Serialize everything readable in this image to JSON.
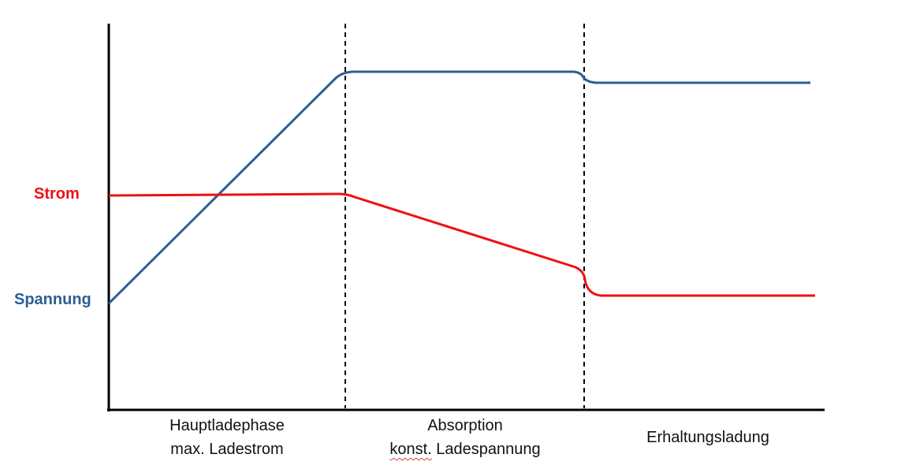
{
  "colors": {
    "strom": "#ee1111",
    "spannung": "#2b5f93",
    "axis": "#000000"
  },
  "series": {
    "strom": {
      "label": "Strom"
    },
    "spannung": {
      "label": "Spannung"
    }
  },
  "phases": [
    {
      "line1": "Hauptladephase",
      "line2": "max. Ladestrom"
    },
    {
      "line1": "Absorption",
      "line2_word1": "konst.",
      "line2_rest": " Ladespannung"
    },
    {
      "line1": "Erhaltungsladung"
    }
  ]
}
